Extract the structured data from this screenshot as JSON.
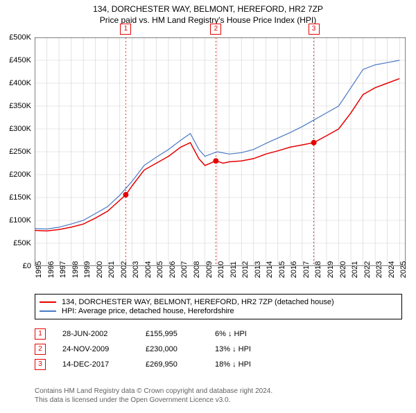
{
  "title": "134, DORCHESTER WAY, BELMONT, HEREFORD, HR2 7ZP",
  "subtitle": "Price paid vs. HM Land Registry's House Price Index (HPI)",
  "chart": {
    "type": "line",
    "background_color": "#ffffff",
    "grid_color": "#d0d0d0",
    "axis_color": "#000000",
    "xlim": [
      1995,
      2025.5
    ],
    "ylim": [
      0,
      500000
    ],
    "ytick_step": 50000,
    "ytick_labels": [
      "£0",
      "£50K",
      "£100K",
      "£150K",
      "£200K",
      "£250K",
      "£300K",
      "£350K",
      "£400K",
      "£450K",
      "£500K"
    ],
    "xticks": [
      1995,
      1996,
      1997,
      1998,
      1999,
      2000,
      2001,
      2002,
      2003,
      2004,
      2005,
      2006,
      2007,
      2008,
      2009,
      2010,
      2011,
      2012,
      2013,
      2014,
      2015,
      2016,
      2017,
      2018,
      2019,
      2020,
      2021,
      2022,
      2023,
      2024,
      2025
    ],
    "title_fontsize": 12,
    "label_fontsize": 11,
    "series": [
      {
        "name": "property",
        "label": "134, DORCHESTER WAY, BELMONT, HEREFORD, HR2 7ZP (detached house)",
        "color": "#e60000",
        "line_width": 1.5,
        "points": [
          [
            1995,
            78000
          ],
          [
            1996,
            77000
          ],
          [
            1997,
            80000
          ],
          [
            1998,
            85000
          ],
          [
            1999,
            92000
          ],
          [
            2000,
            105000
          ],
          [
            2001,
            120000
          ],
          [
            2002.5,
            155995
          ],
          [
            2003,
            175000
          ],
          [
            2004,
            210000
          ],
          [
            2005,
            225000
          ],
          [
            2006,
            240000
          ],
          [
            2007,
            260000
          ],
          [
            2007.8,
            270000
          ],
          [
            2008.5,
            235000
          ],
          [
            2009,
            220000
          ],
          [
            2009.9,
            230000
          ],
          [
            2010.5,
            225000
          ],
          [
            2011,
            228000
          ],
          [
            2012,
            230000
          ],
          [
            2013,
            235000
          ],
          [
            2014,
            245000
          ],
          [
            2015,
            252000
          ],
          [
            2016,
            260000
          ],
          [
            2017,
            265000
          ],
          [
            2017.95,
            269950
          ],
          [
            2019,
            285000
          ],
          [
            2020,
            300000
          ],
          [
            2021,
            335000
          ],
          [
            2022,
            375000
          ],
          [
            2023,
            390000
          ],
          [
            2024,
            400000
          ],
          [
            2025,
            410000
          ]
        ]
      },
      {
        "name": "hpi",
        "label": "HPI: Average price, detached house, Herefordshire",
        "color": "#4a78c4",
        "line_width": 1.2,
        "points": [
          [
            1995,
            82000
          ],
          [
            1996,
            81000
          ],
          [
            1997,
            85000
          ],
          [
            1998,
            92000
          ],
          [
            1999,
            100000
          ],
          [
            2000,
            115000
          ],
          [
            2001,
            130000
          ],
          [
            2002,
            155000
          ],
          [
            2003,
            185000
          ],
          [
            2004,
            220000
          ],
          [
            2005,
            238000
          ],
          [
            2006,
            255000
          ],
          [
            2007,
            275000
          ],
          [
            2007.8,
            290000
          ],
          [
            2008.5,
            255000
          ],
          [
            2009,
            240000
          ],
          [
            2010,
            250000
          ],
          [
            2011,
            245000
          ],
          [
            2012,
            248000
          ],
          [
            2013,
            255000
          ],
          [
            2014,
            268000
          ],
          [
            2015,
            280000
          ],
          [
            2016,
            292000
          ],
          [
            2017,
            305000
          ],
          [
            2018,
            320000
          ],
          [
            2019,
            335000
          ],
          [
            2020,
            350000
          ],
          [
            2021,
            390000
          ],
          [
            2022,
            430000
          ],
          [
            2023,
            440000
          ],
          [
            2024,
            445000
          ],
          [
            2025,
            450000
          ]
        ]
      }
    ],
    "sale_markers": [
      {
        "n": "1",
        "x": 2002.49,
        "y": 155995
      },
      {
        "n": "2",
        "x": 2009.9,
        "y": 230000
      },
      {
        "n": "3",
        "x": 2017.95,
        "y": 269950
      }
    ],
    "marker_line_color": "#e60000",
    "marker_dot_color": "#e60000",
    "marker_dot_radius": 4
  },
  "legend": {
    "border_color": "#000000",
    "items": [
      {
        "color": "#e60000",
        "label": "134, DORCHESTER WAY, BELMONT, HEREFORD, HR2 7ZP (detached house)"
      },
      {
        "color": "#4a78c4",
        "label": "HPI: Average price, detached house, Herefordshire"
      }
    ]
  },
  "price_table": {
    "rows": [
      {
        "n": "1",
        "date": "28-JUN-2002",
        "price": "£155,995",
        "pct": "6% ↓ HPI"
      },
      {
        "n": "2",
        "date": "24-NOV-2009",
        "price": "£230,000",
        "pct": "13% ↓ HPI"
      },
      {
        "n": "3",
        "date": "14-DEC-2017",
        "price": "£269,950",
        "pct": "18% ↓ HPI"
      }
    ]
  },
  "footer": {
    "line1": "Contains HM Land Registry data © Crown copyright and database right 2024.",
    "line2": "This data is licensed under the Open Government Licence v3.0."
  }
}
